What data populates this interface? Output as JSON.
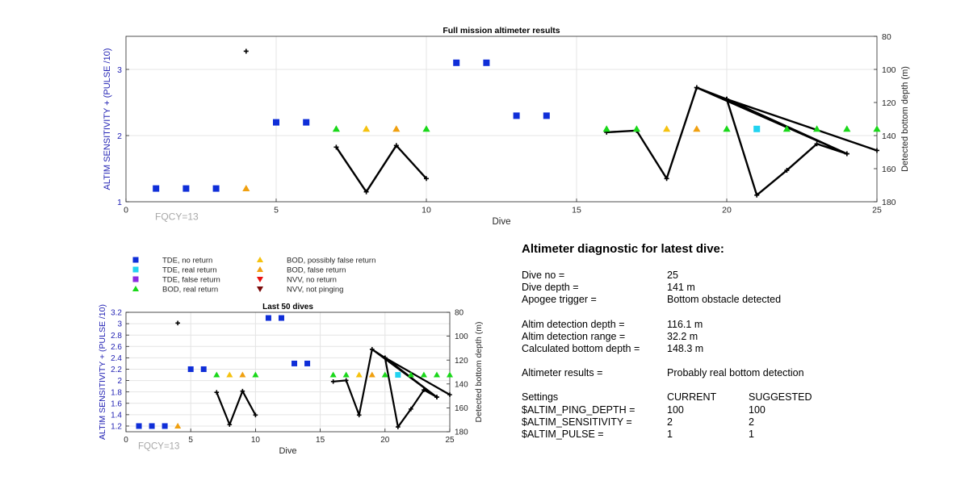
{
  "colors": {
    "tde_no_return": "#0f2ed8",
    "tde_real_return": "#22d3f0",
    "tde_false_return": "#8a2be2",
    "bod_real_return": "#19d819",
    "bod_possibly_false": "#f5c20f",
    "bod_false_return": "#f0a010",
    "nvv_no_return": "#e81010",
    "nvv_not_pinging": "#7a0a0a",
    "axis_blue": "#2323b4",
    "fqcy_gray": "#a8a8a8",
    "bottom_line": "#000000"
  },
  "legend": {
    "tde_no_return": "TDE, no return",
    "tde_real_return": "TDE, real return",
    "tde_false_return": "TDE, false return",
    "bod_real_return": "BOD, real return",
    "bod_possibly_false": "BOD, possibly false return",
    "bod_false_return": "BOD, false return",
    "nvv_no_return": "NVV, no return",
    "nvv_not_pinging": "NVV, not pinging"
  },
  "chart_data": [
    {
      "type": "scatter",
      "title": "Full mission altimeter results",
      "xlabel": "Dive",
      "ylabel": "ALTIM SENSITIVITY + (PULSE /10)",
      "y2label": "Detected bottom depth (m)",
      "annotation": "FQCY=13",
      "xlim": [
        0,
        25
      ],
      "ylim": [
        1,
        3.5
      ],
      "y2lim": [
        80,
        180
      ],
      "y2_reversed": true,
      "xticks": [
        "0",
        "5",
        "10",
        "15",
        "20",
        "25"
      ],
      "yticks": [
        "1",
        "2",
        "3"
      ],
      "y2ticks": [
        "80",
        "100",
        "120",
        "140",
        "160",
        "180"
      ],
      "grid": true
    },
    {
      "type": "scatter",
      "title": "Last 50 dives",
      "xlabel": "Dive",
      "ylabel": "ALTIM SENSITIVITY + (PULSE /10)",
      "y2label": "Detected bottom depth (m)",
      "annotation": "FQCY=13",
      "xlim": [
        0,
        25
      ],
      "ylim": [
        1.1,
        3.2
      ],
      "y2lim": [
        80,
        180
      ],
      "y2_reversed": true,
      "xticks": [
        "0",
        "5",
        "10",
        "15",
        "20",
        "25"
      ],
      "yticks": [
        "1.2",
        "1.4",
        "1.6",
        "1.8",
        "2",
        "2.2",
        "2.4",
        "2.6",
        "2.8",
        "3",
        "3.2"
      ],
      "y2ticks": [
        "80",
        "100",
        "120",
        "140",
        "160",
        "180"
      ],
      "grid": true
    }
  ],
  "markers": [
    {
      "dive": 1,
      "y": 1.2,
      "cat": "tde_no_return"
    },
    {
      "dive": 2,
      "y": 1.2,
      "cat": "tde_no_return"
    },
    {
      "dive": 3,
      "y": 1.2,
      "cat": "tde_no_return"
    },
    {
      "dive": 4,
      "y": 1.2,
      "cat": "bod_false_return"
    },
    {
      "dive": 5,
      "y": 2.2,
      "cat": "tde_no_return"
    },
    {
      "dive": 6,
      "y": 2.2,
      "cat": "tde_no_return"
    },
    {
      "dive": 7,
      "y": 2.1,
      "cat": "bod_real_return"
    },
    {
      "dive": 8,
      "y": 2.1,
      "cat": "bod_possibly_false"
    },
    {
      "dive": 9,
      "y": 2.1,
      "cat": "bod_false_return"
    },
    {
      "dive": 10,
      "y": 2.1,
      "cat": "bod_real_return"
    },
    {
      "dive": 11,
      "y": 3.1,
      "cat": "tde_no_return"
    },
    {
      "dive": 12,
      "y": 3.1,
      "cat": "tde_no_return"
    },
    {
      "dive": 13,
      "y": 2.3,
      "cat": "tde_no_return"
    },
    {
      "dive": 14,
      "y": 2.3,
      "cat": "tde_no_return"
    },
    {
      "dive": 16,
      "y": 2.1,
      "cat": "bod_real_return"
    },
    {
      "dive": 17,
      "y": 2.1,
      "cat": "bod_real_return"
    },
    {
      "dive": 18,
      "y": 2.1,
      "cat": "bod_possibly_false"
    },
    {
      "dive": 19,
      "y": 2.1,
      "cat": "bod_false_return"
    },
    {
      "dive": 20,
      "y": 2.1,
      "cat": "bod_real_return"
    },
    {
      "dive": 21,
      "y": 2.1,
      "cat": "tde_real_return"
    },
    {
      "dive": 22,
      "y": 2.1,
      "cat": "bod_real_return"
    },
    {
      "dive": 23,
      "y": 2.1,
      "cat": "bod_real_return"
    },
    {
      "dive": 24,
      "y": 2.1,
      "cat": "bod_real_return"
    },
    {
      "dive": 25,
      "y": 2.1,
      "cat": "bod_real_return"
    }
  ],
  "bottom_depth_isolated": [
    {
      "dive": 4,
      "depth": 89
    }
  ],
  "bottom_depth_segments": [
    [
      [
        7,
        147
      ],
      [
        8,
        174
      ],
      [
        9,
        146
      ],
      [
        10,
        166
      ]
    ],
    [
      [
        16,
        138
      ],
      [
        17,
        137
      ],
      [
        18,
        166
      ],
      [
        19,
        111
      ],
      [
        20,
        118
      ],
      [
        21,
        176
      ],
      [
        22,
        161
      ],
      [
        23,
        145
      ],
      [
        24,
        151
      ],
      [
        19,
        111
      ]
    ],
    [
      [
        20,
        118
      ],
      [
        25,
        149
      ],
      [
        20,
        118
      ],
      [
        24,
        151
      ]
    ]
  ],
  "diagnostic": {
    "title": "Altimeter diagnostic for latest dive:",
    "dive_no_label": "Dive no =",
    "dive_no": "25",
    "dive_depth_label": "Dive depth =",
    "dive_depth": "141 m",
    "apogee_label": "Apogee trigger =",
    "apogee": "Bottom obstacle detected",
    "det_depth_label": "Altim detection depth =",
    "det_depth": "116.1 m",
    "det_range_label": "Altim detection range =",
    "det_range": "32.2 m",
    "calc_depth_label": "Calculated bottom depth =",
    "calc_depth": "148.3 m",
    "results_label": "Altimeter results =",
    "results": "Probably real bottom detection",
    "settings_label": "Settings",
    "current_label": "CURRENT",
    "suggested_label": "SUGGESTED",
    "ping_depth_label": "$ALTIM_PING_DEPTH =",
    "ping_depth_current": "100",
    "ping_depth_suggested": "100",
    "sensitivity_label": "$ALTIM_SENSITIVITY =",
    "sensitivity_current": "2",
    "sensitivity_suggested": "2",
    "pulse_label": "$ALTIM_PULSE =",
    "pulse_current": "1",
    "pulse_suggested": "1"
  }
}
